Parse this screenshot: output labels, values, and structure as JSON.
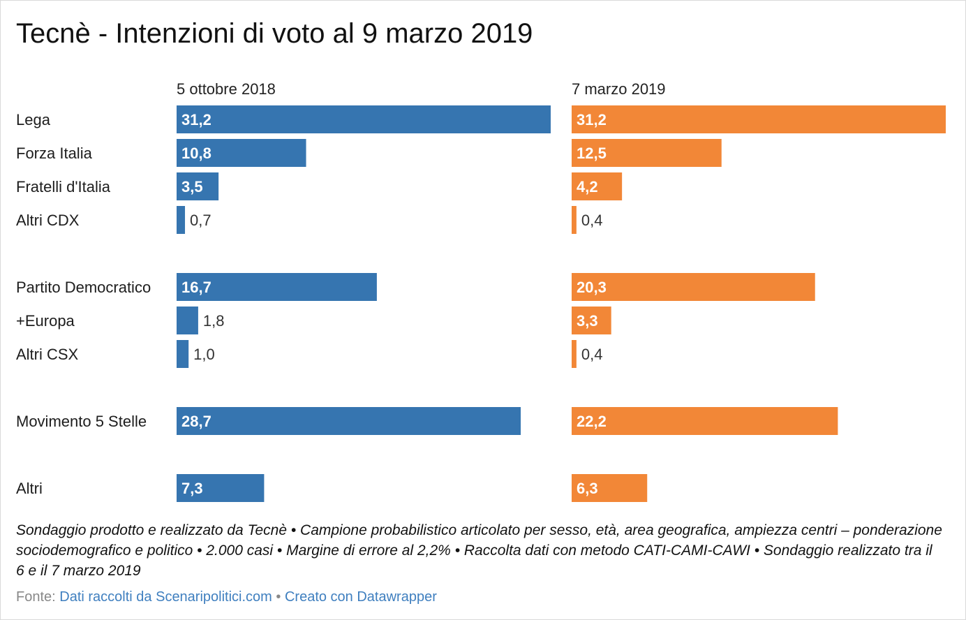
{
  "title": "Tecnè - Intenzioni di voto al 9 marzo 2019",
  "note": "Sondaggio prodotto e realizzato da Tecnè • Campione probabilistico articolato per sesso, età, area geografica, ampiezza centri – ponderazione sociodemografico e politico • 2.000 casi • Margine di errore al 2,2% • Raccolta dati con metodo CATI-CAMI-CAWI • Sondaggio realizzato tra il 6 e il 7 marzo 2019",
  "source": {
    "label": "Fonte:",
    "source_link": "Dati raccolti da Scenaripolitici.com",
    "separator": "•",
    "credit_link": "Creato con Datawrapper"
  },
  "colors": {
    "series1": "#3675b0",
    "series2": "#f28737",
    "label_inside": "#ffffff",
    "label_outside": "#333333"
  },
  "chart_data": {
    "type": "bar",
    "orientation": "horizontal",
    "layout": "small-multiples-columns",
    "categories": [
      "Lega",
      "Forza Italia",
      "Fratelli d'Italia",
      "Altri CDX",
      "Partito Democratico",
      "+Europa",
      "Altri CSX",
      "Movimento 5 Stelle",
      "Altri"
    ],
    "groups": [
      [
        "Lega",
        "Forza Italia",
        "Fratelli d'Italia",
        "Altri CDX"
      ],
      [
        "Partito Democratico",
        "+Europa",
        "Altri CSX"
      ],
      [
        "Movimento 5 Stelle"
      ],
      [
        "Altri"
      ]
    ],
    "series": [
      {
        "name": "5 ottobre 2018",
        "color": "#3675b0",
        "values": [
          31.2,
          10.8,
          3.5,
          0.7,
          16.7,
          1.8,
          1.0,
          28.7,
          7.3
        ],
        "labels": [
          "31,2",
          "10,8",
          "3,5",
          "0,7",
          "16,7",
          "1,8",
          "1,0",
          "28,7",
          "7,3"
        ]
      },
      {
        "name": "7 marzo 2019",
        "color": "#f28737",
        "values": [
          31.2,
          12.5,
          4.2,
          0.4,
          20.3,
          3.3,
          0.4,
          22.2,
          6.3
        ],
        "labels": [
          "31,2",
          "12,5",
          "4,2",
          "0,4",
          "20,3",
          "3,3",
          "0,4",
          "22,2",
          "6,3"
        ]
      }
    ],
    "xlim": [
      0,
      31.2
    ],
    "grid": false,
    "legend": "none"
  }
}
